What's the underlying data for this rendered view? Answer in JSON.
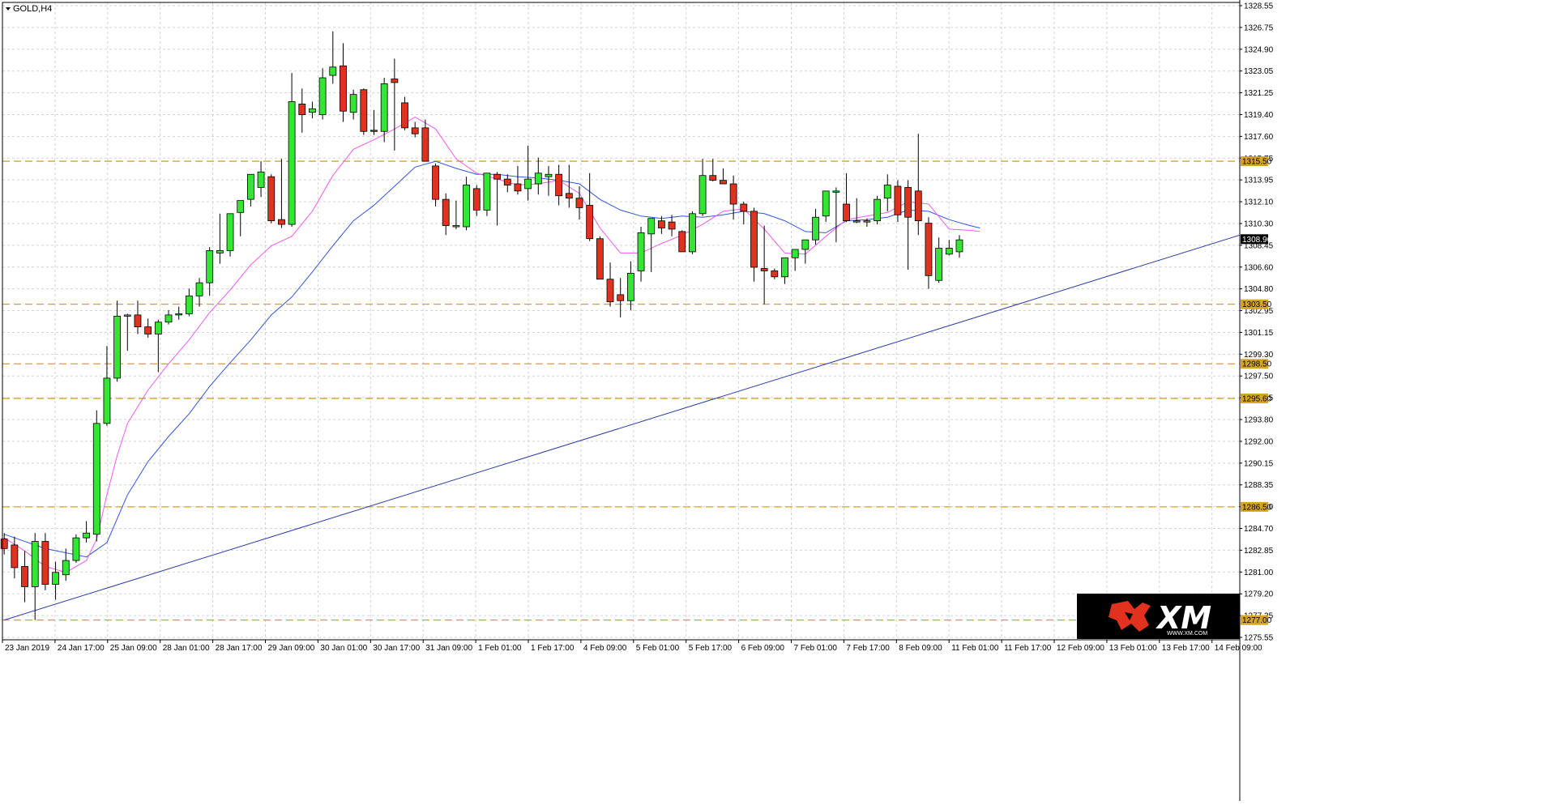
{
  "chart_data": {
    "type": "candlestick",
    "symbol": "GOLD,H4",
    "ylim": [
      1275.55,
      1328.55
    ],
    "y_ticks": [
      "1328.55",
      "1326.75",
      "1324.90",
      "1323.05",
      "1321.25",
      "1319.40",
      "1317.60",
      "1315.75",
      "1313.95",
      "1312.10",
      "1310.30",
      "1308.45",
      "1306.60",
      "1304.80",
      "1302.95",
      "1301.15",
      "1299.30",
      "1297.50",
      "1295.65",
      "1293.80",
      "1292.00",
      "1290.15",
      "1288.35",
      "1286.50",
      "1284.70",
      "1282.85",
      "1281.00",
      "1279.20",
      "1277.35",
      "1275.55"
    ],
    "x_tick_labels": [
      "23 Jan 2019",
      "24 Jan 17:00",
      "25 Jan 09:00",
      "28 Jan 01:00",
      "28 Jan 17:00",
      "29 Jan 09:00",
      "30 Jan 01:00",
      "30 Jan 17:00",
      "31 Jan 09:00",
      "1 Feb 01:00",
      "1 Feb 17:00",
      "4 Feb 09:00",
      "5 Feb 01:00",
      "5 Feb 17:00",
      "6 Feb 09:00",
      "7 Feb 01:00",
      "7 Feb 17:00",
      "8 Feb 09:00",
      "11 Feb 01:00",
      "11 Feb 17:00",
      "12 Feb 09:00",
      "13 Feb 01:00",
      "13 Feb 17:00",
      "14 Feb 09:00"
    ],
    "levels": [
      {
        "value": 1315.5,
        "label": "1315.50"
      },
      {
        "value": 1303.5,
        "label": "1303.50"
      },
      {
        "value": 1298.5,
        "label": "1298.50"
      },
      {
        "value": 1295.6,
        "label": "1295.60"
      },
      {
        "value": 1286.5,
        "label": "1286.50"
      },
      {
        "value": 1277.0,
        "label": "1277.00"
      }
    ],
    "current_price": {
      "value": 1308.96,
      "label": "1308.96"
    },
    "trendline": {
      "start": [
        0,
        1277.0
      ],
      "end": [
        120.3,
        1309.3
      ]
    },
    "candles": [
      [
        1283.8,
        1284.3,
        1282.5,
        1283.0
      ],
      [
        1283.3,
        1284.0,
        1280.5,
        1281.4
      ],
      [
        1281.5,
        1282.8,
        1278.5,
        1279.8
      ],
      [
        1279.8,
        1284.3,
        1277.0,
        1283.6
      ],
      [
        1283.6,
        1284.3,
        1279.5,
        1280.0
      ],
      [
        1280.0,
        1281.9,
        1278.7,
        1281.0
      ],
      [
        1280.8,
        1283.0,
        1280.3,
        1282.0
      ],
      [
        1282.0,
        1284.2,
        1281.8,
        1283.9
      ],
      [
        1283.9,
        1285.3,
        1283.5,
        1284.3
      ],
      [
        1284.2,
        1294.6,
        1283.6,
        1293.5
      ],
      [
        1293.5,
        1300.0,
        1293.3,
        1297.3
      ],
      [
        1297.3,
        1303.8,
        1297.0,
        1302.5
      ],
      [
        1302.5,
        1302.7,
        1299.6,
        1302.6
      ],
      [
        1302.6,
        1303.8,
        1301.0,
        1301.6
      ],
      [
        1301.6,
        1302.3,
        1300.7,
        1301.0
      ],
      [
        1301.0,
        1302.2,
        1297.8,
        1302.0
      ],
      [
        1302.0,
        1303.0,
        1301.8,
        1302.6
      ],
      [
        1302.6,
        1303.3,
        1302.2,
        1302.7
      ],
      [
        1302.7,
        1304.8,
        1302.5,
        1304.2
      ],
      [
        1304.2,
        1305.7,
        1303.3,
        1305.3
      ],
      [
        1305.3,
        1308.3,
        1304.2,
        1308.0
      ],
      [
        1307.8,
        1311.1,
        1306.9,
        1308.0
      ],
      [
        1308.0,
        1311.1,
        1307.5,
        1311.1
      ],
      [
        1311.2,
        1312.2,
        1309.2,
        1312.2
      ],
      [
        1312.3,
        1314.2,
        1311.7,
        1314.4
      ],
      [
        1313.3,
        1315.5,
        1312.5,
        1314.6
      ],
      [
        1314.2,
        1314.4,
        1310.3,
        1310.5
      ],
      [
        1310.6,
        1315.7,
        1309.9,
        1310.2
      ],
      [
        1310.2,
        1322.9,
        1310.0,
        1320.5
      ],
      [
        1320.3,
        1321.6,
        1317.9,
        1319.4
      ],
      [
        1319.6,
        1320.5,
        1319.1,
        1319.9
      ],
      [
        1319.4,
        1323.3,
        1319.0,
        1322.5
      ],
      [
        1322.7,
        1326.4,
        1322.0,
        1323.4
      ],
      [
        1323.5,
        1325.4,
        1318.8,
        1319.7
      ],
      [
        1319.6,
        1321.5,
        1319.0,
        1321.1
      ],
      [
        1321.5,
        1321.6,
        1317.7,
        1318.0
      ],
      [
        1318.1,
        1319.8,
        1317.7,
        1318.0
      ],
      [
        1318.0,
        1322.5,
        1317.1,
        1322.0
      ],
      [
        1322.4,
        1324.1,
        1316.4,
        1322.1
      ],
      [
        1320.4,
        1320.9,
        1318.1,
        1318.3
      ],
      [
        1318.3,
        1318.8,
        1317.5,
        1317.8
      ],
      [
        1318.3,
        1319.0,
        1315.6,
        1315.5
      ],
      [
        1315.1,
        1315.3,
        1311.7,
        1312.3
      ],
      [
        1312.3,
        1312.8,
        1309.3,
        1310.1
      ],
      [
        1310.1,
        1312.2,
        1309.8,
        1310.1
      ],
      [
        1310.0,
        1314.2,
        1309.7,
        1313.5
      ],
      [
        1313.2,
        1313.5,
        1310.9,
        1311.4
      ],
      [
        1311.4,
        1314.5,
        1310.9,
        1314.5
      ],
      [
        1314.4,
        1314.6,
        1310.1,
        1314.0
      ],
      [
        1314.0,
        1314.4,
        1312.9,
        1313.5
      ],
      [
        1313.6,
        1315.1,
        1312.7,
        1313.0
      ],
      [
        1313.2,
        1316.8,
        1312.2,
        1314.0
      ],
      [
        1313.6,
        1315.8,
        1312.7,
        1314.5
      ],
      [
        1314.2,
        1315.1,
        1312.6,
        1314.4
      ],
      [
        1314.4,
        1315.2,
        1311.8,
        1312.6
      ],
      [
        1312.8,
        1315.2,
        1311.6,
        1312.4
      ],
      [
        1312.4,
        1313.4,
        1310.6,
        1311.6
      ],
      [
        1311.8,
        1314.5,
        1308.8,
        1309.0
      ],
      [
        1309.0,
        1309.2,
        1305.6,
        1305.6
      ],
      [
        1305.6,
        1307.0,
        1303.3,
        1303.7
      ],
      [
        1304.3,
        1305.7,
        1302.4,
        1303.8
      ],
      [
        1303.8,
        1307.1,
        1303.0,
        1306.1
      ],
      [
        1306.3,
        1310.0,
        1305.4,
        1309.5
      ],
      [
        1309.4,
        1310.6,
        1306.2,
        1310.7
      ],
      [
        1310.5,
        1310.9,
        1309.4,
        1309.9
      ],
      [
        1310.4,
        1311.0,
        1309.2,
        1309.8
      ],
      [
        1309.6,
        1309.7,
        1307.9,
        1307.9
      ],
      [
        1307.9,
        1311.3,
        1307.7,
        1311.1
      ],
      [
        1311.1,
        1315.7,
        1310.9,
        1314.3
      ],
      [
        1314.3,
        1315.7,
        1313.8,
        1313.9
      ],
      [
        1313.9,
        1314.9,
        1313.6,
        1313.6
      ],
      [
        1313.6,
        1314.3,
        1310.6,
        1311.9
      ],
      [
        1311.9,
        1312.1,
        1310.2,
        1311.3
      ],
      [
        1311.3,
        1311.6,
        1305.4,
        1306.6
      ],
      [
        1306.5,
        1310.1,
        1303.5,
        1306.3
      ],
      [
        1306.3,
        1306.5,
        1305.6,
        1305.8
      ],
      [
        1305.8,
        1306.9,
        1305.2,
        1307.4
      ],
      [
        1307.4,
        1308.1,
        1306.3,
        1308.1
      ],
      [
        1308.1,
        1308.5,
        1306.9,
        1308.9
      ],
      [
        1308.9,
        1311.5,
        1308.5,
        1310.8
      ],
      [
        1310.9,
        1313.0,
        1310.4,
        1313.0
      ],
      [
        1312.9,
        1313.3,
        1308.7,
        1313.0
      ],
      [
        1311.9,
        1314.5,
        1310.4,
        1310.5
      ],
      [
        1310.4,
        1312.4,
        1310.3,
        1310.5
      ],
      [
        1310.4,
        1310.7,
        1310.0,
        1310.5
      ],
      [
        1310.5,
        1312.6,
        1310.2,
        1312.3
      ],
      [
        1312.4,
        1314.4,
        1311.3,
        1313.5
      ],
      [
        1313.4,
        1313.9,
        1310.4,
        1311.0
      ],
      [
        1313.3,
        1313.9,
        1306.4,
        1310.8
      ],
      [
        1313.0,
        1317.8,
        1309.3,
        1310.5
      ],
      [
        1310.3,
        1310.8,
        1304.8,
        1305.9
      ],
      [
        1305.5,
        1309.1,
        1305.3,
        1308.2
      ],
      [
        1307.7,
        1308.9,
        1307.6,
        1308.2
      ],
      [
        1307.9,
        1309.3,
        1307.4,
        1308.9
      ]
    ],
    "ma_fast": [
      [
        0,
        1283.9
      ],
      [
        2,
        1282.8
      ],
      [
        4,
        1281.5
      ],
      [
        6,
        1281.0
      ],
      [
        8,
        1282.0
      ],
      [
        9,
        1283.8
      ],
      [
        10,
        1287.5
      ],
      [
        11,
        1290.8
      ],
      [
        12,
        1293.5
      ],
      [
        14,
        1296.3
      ],
      [
        16,
        1298.5
      ],
      [
        18,
        1300.5
      ],
      [
        20,
        1302.8
      ],
      [
        22,
        1304.7
      ],
      [
        24,
        1306.8
      ],
      [
        26,
        1308.4
      ],
      [
        28,
        1309.2
      ],
      [
        30,
        1311.3
      ],
      [
        32,
        1314.3
      ],
      [
        34,
        1316.5
      ],
      [
        36,
        1317.3
      ],
      [
        38,
        1318.2
      ],
      [
        40,
        1319.2
      ],
      [
        42,
        1318.2
      ],
      [
        44,
        1315.7
      ],
      [
        46,
        1314.5
      ],
      [
        48,
        1314.0
      ],
      [
        50,
        1313.5
      ],
      [
        52,
        1313.6
      ],
      [
        54,
        1313.9
      ],
      [
        56,
        1312.8
      ],
      [
        58,
        1309.9
      ],
      [
        60,
        1307.8
      ],
      [
        62,
        1307.8
      ],
      [
        64,
        1308.6
      ],
      [
        66,
        1309.3
      ],
      [
        68,
        1310.2
      ],
      [
        70,
        1311.3
      ],
      [
        72,
        1311.5
      ],
      [
        74,
        1309.8
      ],
      [
        76,
        1307.8
      ],
      [
        78,
        1307.7
      ],
      [
        80,
        1309.2
      ],
      [
        82,
        1310.6
      ],
      [
        84,
        1310.9
      ],
      [
        86,
        1311.2
      ],
      [
        88,
        1312.1
      ],
      [
        90,
        1311.9
      ],
      [
        92,
        1309.8
      ],
      [
        94,
        1309.7
      ],
      [
        95,
        1309.6
      ]
    ],
    "ma_slow": [
      [
        0,
        1284.2
      ],
      [
        4,
        1283.0
      ],
      [
        8,
        1282.3
      ],
      [
        10,
        1283.5
      ],
      [
        12,
        1287.5
      ],
      [
        14,
        1290.3
      ],
      [
        16,
        1292.4
      ],
      [
        18,
        1294.3
      ],
      [
        20,
        1296.6
      ],
      [
        22,
        1298.6
      ],
      [
        24,
        1300.5
      ],
      [
        26,
        1302.6
      ],
      [
        28,
        1304.1
      ],
      [
        30,
        1306.2
      ],
      [
        32,
        1308.4
      ],
      [
        34,
        1310.5
      ],
      [
        36,
        1311.8
      ],
      [
        38,
        1313.4
      ],
      [
        40,
        1315.0
      ],
      [
        42,
        1315.5
      ],
      [
        44,
        1314.9
      ],
      [
        46,
        1314.4
      ],
      [
        48,
        1314.4
      ],
      [
        50,
        1314.2
      ],
      [
        52,
        1314.1
      ],
      [
        54,
        1313.9
      ],
      [
        56,
        1313.6
      ],
      [
        58,
        1312.3
      ],
      [
        60,
        1311.4
      ],
      [
        62,
        1310.9
      ],
      [
        64,
        1310.7
      ],
      [
        66,
        1310.9
      ],
      [
        68,
        1310.8
      ],
      [
        70,
        1311.0
      ],
      [
        72,
        1311.3
      ],
      [
        74,
        1311.1
      ],
      [
        76,
        1310.5
      ],
      [
        78,
        1309.6
      ],
      [
        80,
        1309.5
      ],
      [
        82,
        1310.5
      ],
      [
        84,
        1310.6
      ],
      [
        86,
        1310.8
      ],
      [
        88,
        1311.4
      ],
      [
        90,
        1311.3
      ],
      [
        92,
        1310.6
      ],
      [
        94,
        1310.1
      ],
      [
        95,
        1309.9
      ]
    ],
    "grid": true,
    "grid_color": "#d3d3d3",
    "bull_color": "#33e633",
    "bear_color": "#e0321e",
    "ma_fast_color": "#ee5cee",
    "ma_slow_color": "#3355dd",
    "trendline_color": "#2b3aa8",
    "level_color": "#d4a520",
    "logo_text": "XM",
    "logo_url": "WWW.XM.COM"
  }
}
